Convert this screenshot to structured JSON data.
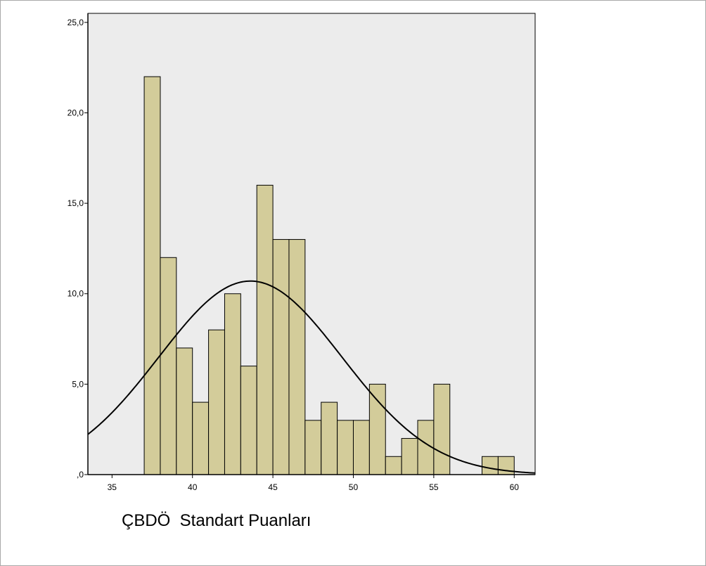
{
  "chart_data": {
    "type": "bar",
    "subtype": "histogram",
    "xlabel": "ÇBDÖ  Standart Puanları",
    "ylabel": "",
    "xlim": [
      33.5,
      61.3
    ],
    "ylim": [
      0,
      25.5
    ],
    "x_ticks": [
      35,
      40,
      45,
      50,
      55,
      60
    ],
    "x_tick_labels": [
      "35",
      "40",
      "45",
      "50",
      "55",
      "60"
    ],
    "y_ticks": [
      0,
      5,
      10,
      15,
      20,
      25
    ],
    "y_tick_labels": [
      ",0",
      "5,0",
      "10,0",
      "15,0",
      "20,0",
      "25,0"
    ],
    "bin_width": 1,
    "bins": [
      {
        "start": 37,
        "end": 38,
        "value": 22
      },
      {
        "start": 38,
        "end": 39,
        "value": 12
      },
      {
        "start": 39,
        "end": 40,
        "value": 7
      },
      {
        "start": 40,
        "end": 41,
        "value": 4
      },
      {
        "start": 41,
        "end": 42,
        "value": 8
      },
      {
        "start": 42,
        "end": 43,
        "value": 10
      },
      {
        "start": 43,
        "end": 44,
        "value": 6
      },
      {
        "start": 44,
        "end": 45,
        "value": 16
      },
      {
        "start": 45,
        "end": 46,
        "value": 13
      },
      {
        "start": 46,
        "end": 47,
        "value": 13
      },
      {
        "start": 47,
        "end": 48,
        "value": 3
      },
      {
        "start": 48,
        "end": 49,
        "value": 4
      },
      {
        "start": 49,
        "end": 50,
        "value": 3
      },
      {
        "start": 50,
        "end": 51,
        "value": 3
      },
      {
        "start": 51,
        "end": 52,
        "value": 5
      },
      {
        "start": 52,
        "end": 53,
        "value": 1
      },
      {
        "start": 53,
        "end": 54,
        "value": 2
      },
      {
        "start": 54,
        "end": 55,
        "value": 3
      },
      {
        "start": 55,
        "end": 56,
        "value": 5
      },
      {
        "start": 58,
        "end": 59,
        "value": 1
      },
      {
        "start": 59,
        "end": 60,
        "value": 1
      }
    ],
    "normal_curve": {
      "mean": 43.6,
      "sd": 5.7,
      "peak": 10.7
    },
    "grid": false,
    "colors": {
      "bar_fill": "#d3cc9a",
      "bar_stroke": "#000000",
      "plot_background": "#ececec",
      "curve": "#000000",
      "axis": "#000000"
    }
  }
}
